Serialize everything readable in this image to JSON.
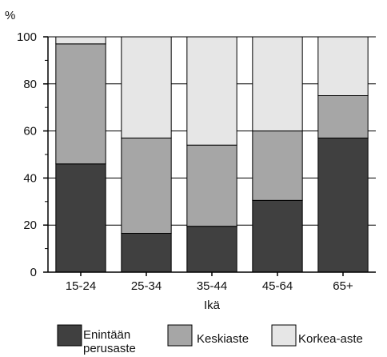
{
  "chart_data": {
    "type": "bar",
    "stacked": true,
    "ylabel": "%",
    "xlabel": "Ikä",
    "ylim": [
      0,
      100
    ],
    "yticks": [
      "0",
      "20",
      "40",
      "60",
      "80",
      "100"
    ],
    "grid": true,
    "legend_position": "bottom",
    "categories": [
      "15-24",
      "25-34",
      "35-44",
      "45-64",
      "65+"
    ],
    "series": [
      {
        "name": "Enintään perusaste",
        "values": [
          46,
          16.5,
          19.5,
          30.5,
          57
        ],
        "color": "#404040"
      },
      {
        "name": "Keskiaste",
        "values": [
          51,
          40.5,
          34.5,
          29.5,
          18
        ],
        "color": "#a6a6a6"
      },
      {
        "name": "Korkea-aste",
        "values": [
          3,
          43,
          46,
          40,
          25
        ],
        "color": "#e6e6e6"
      }
    ]
  },
  "legend": {
    "items": [
      {
        "line1": "Enintään",
        "line2": "perusaste",
        "color": "#404040"
      },
      {
        "line1": "Keskiaste",
        "line2": "",
        "color": "#a6a6a6"
      },
      {
        "line1": "Korkea-aste",
        "line2": "",
        "color": "#e6e6e6"
      }
    ]
  }
}
